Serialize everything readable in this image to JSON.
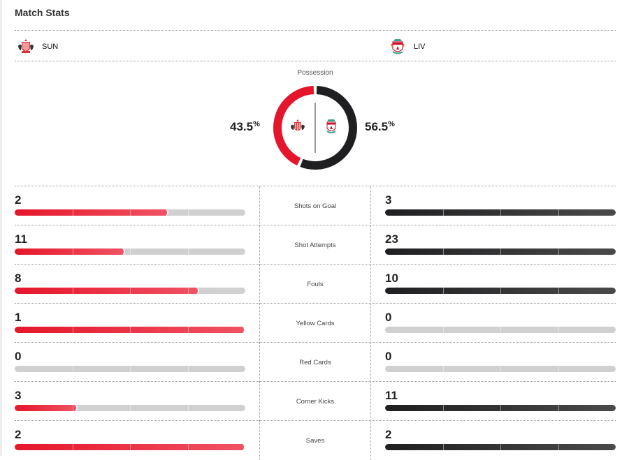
{
  "header": {
    "title": "Match Stats"
  },
  "teams": {
    "home": {
      "abbr": "SUN",
      "crest": "sunderland-crest"
    },
    "away": {
      "abbr": "LIV",
      "crest": "liverpool-crest"
    }
  },
  "possession": {
    "label": "Possession",
    "home_value": "43.5",
    "away_value": "56.5",
    "unit": "%",
    "home_pct": 43.5,
    "away_pct": 56.5
  },
  "colors": {
    "home": "#e5162b",
    "away": "#1f1f21",
    "track": "#cfd0cf"
  },
  "stats": [
    {
      "label": "Shots on Goal",
      "home": "2",
      "away": "3"
    },
    {
      "label": "Shot Attempts",
      "home": "11",
      "away": "23"
    },
    {
      "label": "Fouls",
      "home": "8",
      "away": "10"
    },
    {
      "label": "Yellow Cards",
      "home": "1",
      "away": "0"
    },
    {
      "label": "Red Cards",
      "home": "0",
      "away": "0"
    },
    {
      "label": "Corner Kicks",
      "home": "3",
      "away": "11"
    },
    {
      "label": "Saves",
      "home": "2",
      "away": "2"
    }
  ]
}
